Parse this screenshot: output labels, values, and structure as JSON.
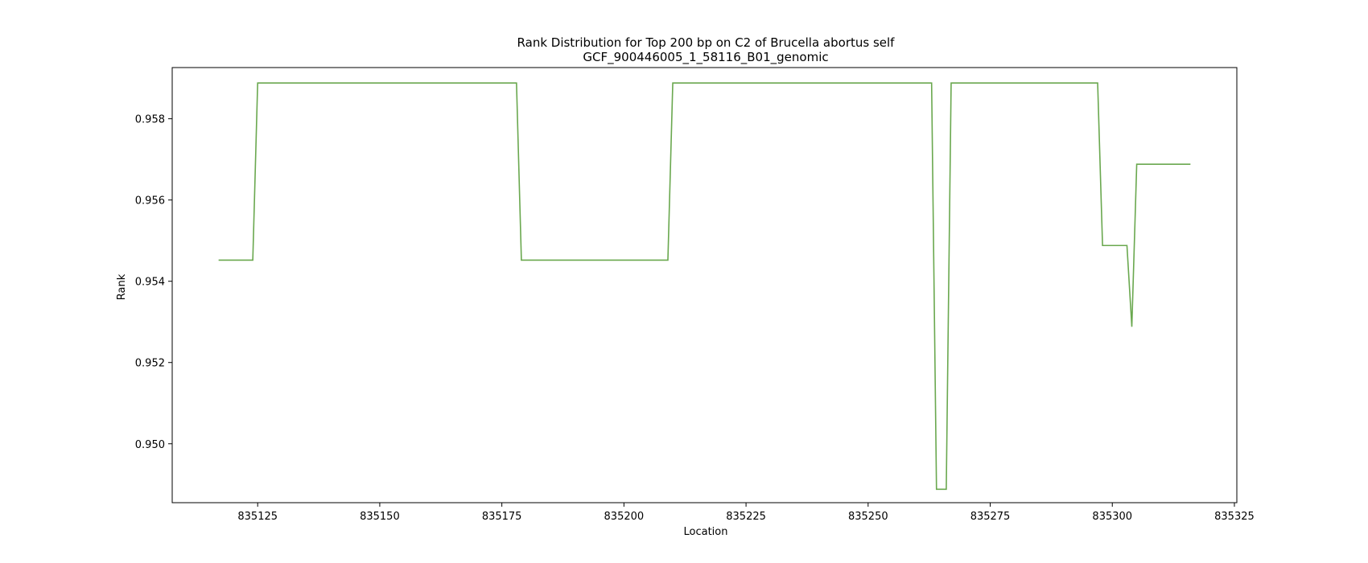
{
  "chart_data": {
    "type": "line",
    "title": "Rank Distribution for Top 200 bp on C2 of Brucella abortus self",
    "subtitle": "GCF_900446005_1_58116_B01_genomic",
    "xlabel": "Location",
    "ylabel": "Rank",
    "xlim": [
      835107.5,
      835325.5
    ],
    "ylim": [
      0.94855,
      0.95926
    ],
    "xticks": [
      835125,
      835150,
      835175,
      835200,
      835225,
      835250,
      835275,
      835300,
      835325
    ],
    "yticks": [
      0.95,
      0.952,
      0.954,
      0.956,
      0.958
    ],
    "xtick_labels": [
      "835125",
      "835150",
      "835175",
      "835200",
      "835225",
      "835250",
      "835275",
      "835300",
      "835325"
    ],
    "ytick_labels": [
      "0.950",
      "0.952",
      "0.954",
      "0.956",
      "0.958"
    ],
    "grid": false,
    "line_color": "#6aa84f",
    "series": [
      {
        "x": [
          835117,
          835124,
          835125,
          835178,
          835179,
          835209,
          835210,
          835263,
          835264,
          835266,
          835267,
          835297,
          835298,
          835303,
          835304,
          835305,
          835316
        ],
        "y": [
          0.95452,
          0.95452,
          0.95888,
          0.95888,
          0.95452,
          0.95452,
          0.95888,
          0.95888,
          0.94888,
          0.94888,
          0.95888,
          0.95888,
          0.95488,
          0.95488,
          0.95288,
          0.95688,
          0.95688
        ]
      }
    ]
  }
}
